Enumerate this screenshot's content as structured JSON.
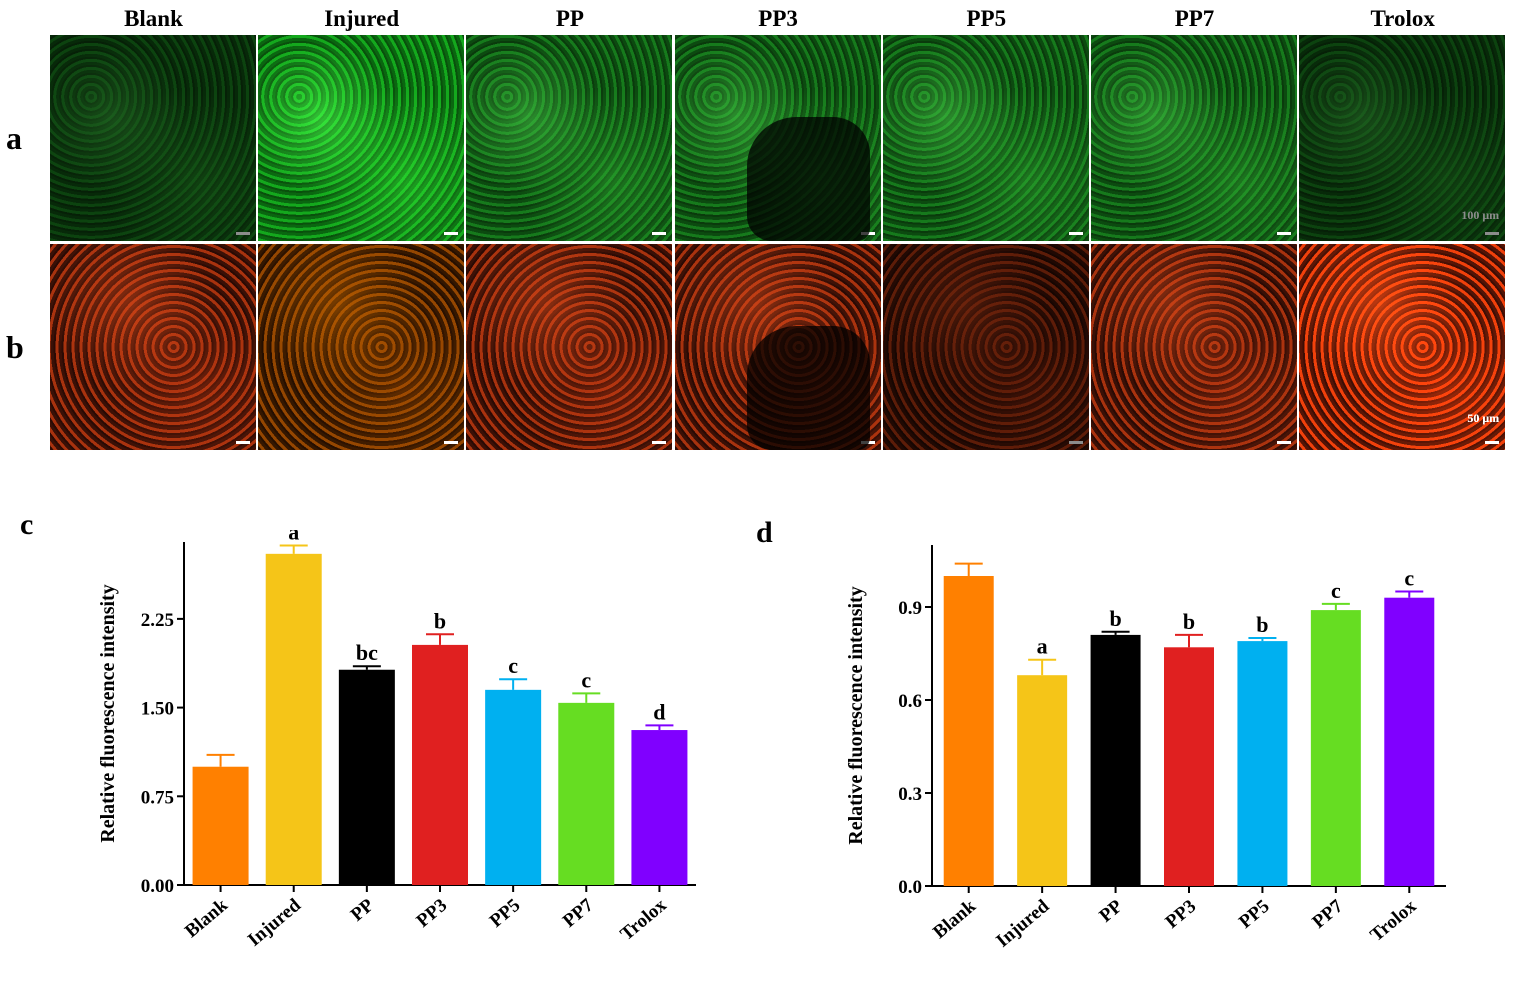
{
  "micrographs": {
    "columns": [
      "Blank",
      "Injured",
      "PP",
      "PP3",
      "PP5",
      "PP7",
      "Trolox"
    ],
    "rows": [
      {
        "label": "a",
        "stain": "green",
        "scale_label": "100 μm"
      },
      {
        "label": "b",
        "stain": "red",
        "scale_label": "50 μm"
      }
    ]
  },
  "colors": {
    "Blank": "#ff8000",
    "Injured": "#f5c518",
    "PP": "#000000",
    "PP3": "#e02020",
    "PP5": "#00b0f0",
    "PP7": "#66dd22",
    "Trolox": "#8000ff"
  },
  "chart_data": [
    {
      "panel": "c",
      "type": "bar",
      "categories": [
        "Blank",
        "Injured",
        "PP",
        "PP3",
        "PP5",
        "PP7",
        "Trolox"
      ],
      "values": [
        1.0,
        2.8,
        1.82,
        2.03,
        1.65,
        1.54,
        1.31
      ],
      "errors": [
        0.1,
        0.07,
        0.03,
        0.09,
        0.09,
        0.08,
        0.04
      ],
      "significance": [
        "",
        "a",
        "bc",
        "b",
        "c",
        "c",
        "d"
      ],
      "ylabel": "Relative fluorescence intensity",
      "yticks": [
        "0.00",
        "0.75",
        "1.50",
        "2.25"
      ],
      "ylim": [
        0,
        2.9
      ],
      "grid": false
    },
    {
      "panel": "d",
      "type": "bar",
      "categories": [
        "Blank",
        "Injured",
        "PP",
        "PP3",
        "PP5",
        "PP7",
        "Trolox"
      ],
      "values": [
        1.0,
        0.68,
        0.81,
        0.77,
        0.79,
        0.89,
        0.93
      ],
      "errors": [
        0.04,
        0.05,
        0.01,
        0.04,
        0.01,
        0.02,
        0.02
      ],
      "significance": [
        "",
        "a",
        "b",
        "b",
        "b",
        "c",
        "c"
      ],
      "ylabel": "Relative fluorescence intensity",
      "yticks": [
        "0.0",
        "0.3",
        "0.6",
        "0.9"
      ],
      "ylim": [
        0,
        1.1
      ],
      "grid": false
    }
  ]
}
